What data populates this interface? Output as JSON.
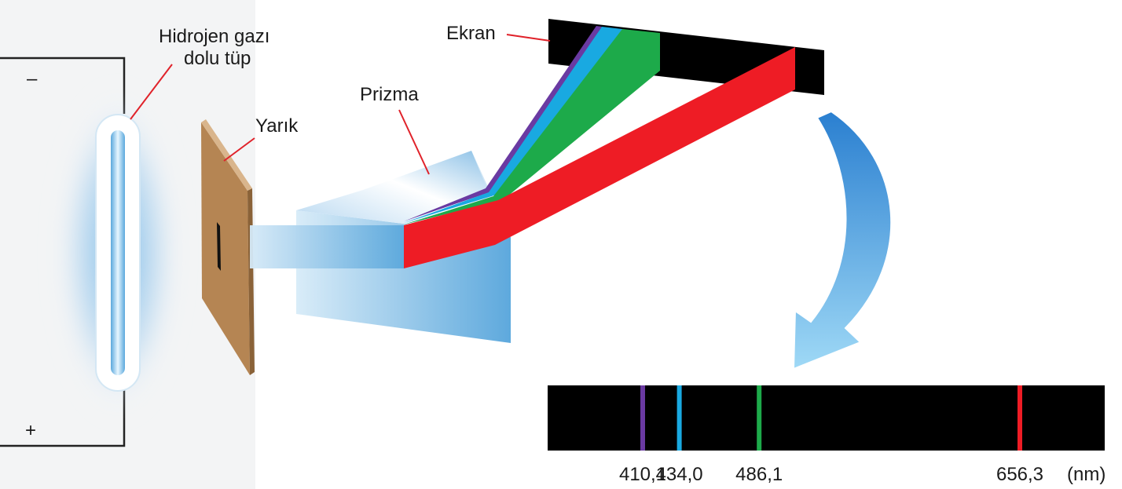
{
  "labels": {
    "tube_line1": "Hidrojen gazı",
    "tube_line2": "dolu tüp",
    "slit": "Yarık",
    "prism": "Prizma",
    "screen": "Ekran",
    "minus": "–",
    "plus": "+"
  },
  "spectrum": {
    "unit": "(nm)",
    "lines": [
      {
        "wavelength": 410.1,
        "label": "410,1",
        "color": "#6a3aa2"
      },
      {
        "wavelength": 434.0,
        "label": "434,0",
        "color": "#19a9e1"
      },
      {
        "wavelength": 486.1,
        "label": "486,1",
        "color": "#1daa4a"
      },
      {
        "wavelength": 656.3,
        "label": "656,3",
        "color": "#ee1c25"
      }
    ]
  },
  "colors": {
    "violet": "#6a3aa2",
    "blue": "#19a9e1",
    "green": "#1daa4a",
    "red": "#ee1c25",
    "slit_card": "#b9895a",
    "screen": "#000000",
    "arrow": "#2f8fd8",
    "tube_glow": "#8fc6ea"
  }
}
